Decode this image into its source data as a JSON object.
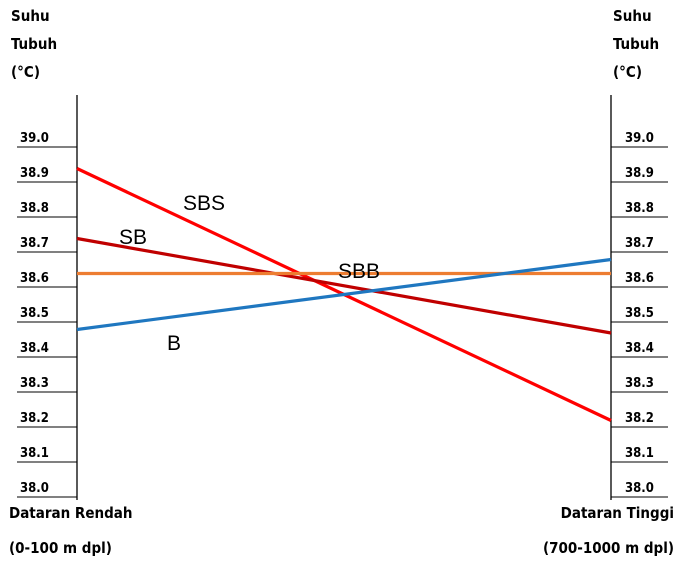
{
  "chart_data": {
    "type": "line",
    "ylabel_left": [
      "Suhu",
      "Tubuh",
      "(°C)"
    ],
    "ylabel_right": [
      "Suhu",
      "Tubuh",
      "(°C)"
    ],
    "x": [
      "Dataran Rendah",
      "Dataran Tinggi"
    ],
    "x_label_lines": [
      [
        "Dataran Rendah",
        "(0-100 m dpl)"
      ],
      [
        "Dataran Tinggi",
        "(700-1000 m dpl)"
      ]
    ],
    "y_ticks": [
      "39.0",
      "38.9",
      "38.8",
      "38.7",
      "38.6",
      "38.5",
      "38.4",
      "38.3",
      "38.2",
      "38.1",
      "38.0"
    ],
    "ylim": [
      38.0,
      39.0
    ],
    "grid": false,
    "series": [
      {
        "name": "SBS",
        "values": [
          38.91,
          38.19
        ],
        "color": "#ff0000"
      },
      {
        "name": "SB",
        "values": [
          38.71,
          38.44
        ],
        "color": "#c00000"
      },
      {
        "name": "SBB",
        "values": [
          38.61,
          38.61
        ],
        "color": "#ed7d31"
      },
      {
        "name": "B",
        "values": [
          38.45,
          38.65
        ],
        "color": "#1f77c0"
      }
    ]
  }
}
